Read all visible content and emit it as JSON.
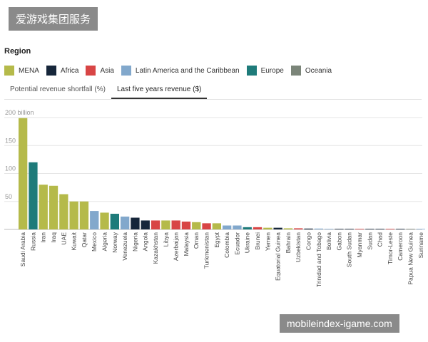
{
  "watermark_top": "爱游戏集团服务",
  "watermark_bottom": "mobileindex-igame.com",
  "region_title": "Region",
  "legend": [
    {
      "label": "MENA",
      "color": "#b5ba4a"
    },
    {
      "label": "Africa",
      "color": "#16263a"
    },
    {
      "label": "Asia",
      "color": "#d84545"
    },
    {
      "label": "Latin America and the Caribbean",
      "color": "#82a8cc"
    },
    {
      "label": "Europe",
      "color": "#1e7b7a"
    },
    {
      "label": "Oceania",
      "color": "#7b8579"
    }
  ],
  "tabs": [
    {
      "label": "Potential revenue shortfall (%)",
      "active": false
    },
    {
      "label": "Last five years revenue ($)",
      "active": true
    }
  ],
  "chart_data": {
    "type": "bar",
    "ylim": [
      0,
      200
    ],
    "yticks": [
      {
        "value": 50,
        "label": "50"
      },
      {
        "value": 100,
        "label": "100"
      },
      {
        "value": 150,
        "label": "150"
      },
      {
        "value": 200,
        "label": "200 billion"
      }
    ],
    "categories": [
      "Saudi Arabia",
      "Russia",
      "Iran",
      "Iraq",
      "UAE",
      "Kuwait",
      "Qatar",
      "Mexico",
      "Algeria",
      "Norway",
      "Venezuela",
      "Nigeria",
      "Angola",
      "Kazakhstan",
      "Libya",
      "Azerbaijan",
      "Malaysia",
      "Oman",
      "Turkmenistan",
      "Egypt",
      "Colombia",
      "Ecuador",
      "Ukraine",
      "Brunei",
      "Yemen",
      "Equatorial Guinea",
      "Bahrain",
      "Uzbekistan",
      "Congo",
      "Trinidad and Tobago",
      "Bolivia",
      "Gabon",
      "South Sudan",
      "Myanmar",
      "Sudan",
      "Chad",
      "Timor-Leste",
      "Cameroon",
      "Papua New Guinea",
      "Suriname"
    ],
    "values": [
      199,
      120,
      80,
      78,
      63,
      50,
      50,
      33,
      30,
      28,
      23,
      21,
      16,
      16,
      16,
      16,
      14,
      13,
      11,
      11,
      7,
      7,
      4,
      4,
      3,
      3,
      2,
      2,
      1.5,
      1.5,
      1,
      1,
      0.5,
      0.5,
      0.5,
      0.5,
      0.3,
      0.3,
      0.3,
      0.3
    ],
    "regions": [
      "MENA",
      "Europe",
      "MENA",
      "MENA",
      "MENA",
      "MENA",
      "MENA",
      "Latin America and the Caribbean",
      "MENA",
      "Europe",
      "Latin America and the Caribbean",
      "Africa",
      "Africa",
      "Asia",
      "MENA",
      "Asia",
      "Asia",
      "MENA",
      "Asia",
      "MENA",
      "Latin America and the Caribbean",
      "Latin America and the Caribbean",
      "Europe",
      "Asia",
      "MENA",
      "Africa",
      "MENA",
      "Asia",
      "Africa",
      "Latin America and the Caribbean",
      "Latin America and the Caribbean",
      "Africa",
      "Africa",
      "Asia",
      "Africa",
      "Africa",
      "Asia",
      "Africa",
      "Oceania",
      "Latin America and the Caribbean"
    ]
  }
}
